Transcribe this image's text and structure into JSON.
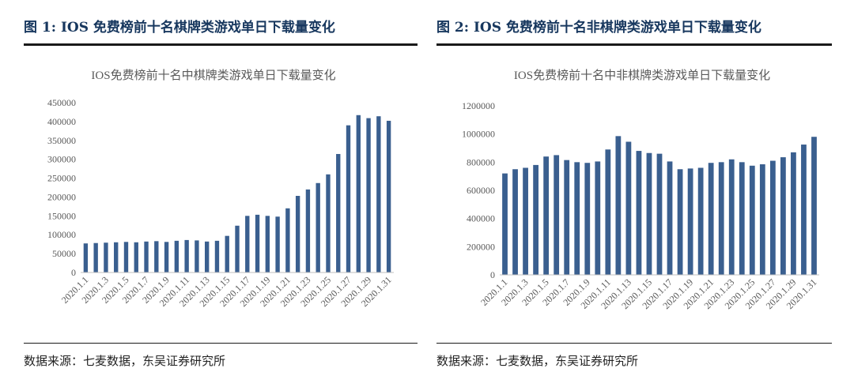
{
  "figures": [
    {
      "heading": "图 1:  IOS 免费榜前十名棋牌类游戏单日下载量变化",
      "source": "数据来源：七麦数据，东吴证券研究所"
    },
    {
      "heading": "图 2:  IOS 免费榜前十名非棋牌类游戏单日下载量变化",
      "source": "数据来源：七麦数据，东吴证券研究所"
    }
  ],
  "chart_data": [
    {
      "type": "bar",
      "title": "IOS免费榜前十名中棋牌类游戏单日下载量变化",
      "categories": [
        "2020.1.1",
        "2020.1.2",
        "2020.1.3",
        "2020.1.4",
        "2020.1.5",
        "2020.1.6",
        "2020.1.7",
        "2020.1.8",
        "2020.1.9",
        "2020.1.10",
        "2020.1.11",
        "2020.1.12",
        "2020.1.13",
        "2020.1.14",
        "2020.1.15",
        "2020.1.16",
        "2020.1.17",
        "2020.1.18",
        "2020.1.19",
        "2020.1.20",
        "2020.1.21",
        "2020.1.22",
        "2020.1.23",
        "2020.1.24",
        "2020.1.25",
        "2020.1.26",
        "2020.1.27",
        "2020.1.28",
        "2020.1.29",
        "2020.1.30",
        "2020.1.31"
      ],
      "tick_labels": [
        "2020.1.1",
        "2020.1.3",
        "2020.1.5",
        "2020.1.7",
        "2020.1.9",
        "2020.1.11",
        "2020.1.13",
        "2020.1.15",
        "2020.1.17",
        "2020.1.19",
        "2020.1.21",
        "2020.1.23",
        "2020.1.25",
        "2020.1.27",
        "2020.1.29",
        "2020.1.31"
      ],
      "values": [
        77000,
        78000,
        79000,
        80000,
        81000,
        80000,
        82000,
        83000,
        81000,
        84000,
        86000,
        85000,
        82000,
        84000,
        97000,
        124000,
        150000,
        153000,
        150000,
        148000,
        170000,
        203000,
        220000,
        237000,
        260000,
        314000,
        390000,
        417000,
        409000,
        414000,
        402000
      ],
      "ylim": [
        0,
        450000
      ],
      "yticks": [
        "0",
        "50000",
        "100000",
        "150000",
        "200000",
        "250000",
        "300000",
        "350000",
        "400000",
        "450000"
      ],
      "ytick_values": [
        0,
        50000,
        100000,
        150000,
        200000,
        250000,
        300000,
        350000,
        400000,
        450000
      ],
      "color": "#3a5f8f",
      "grid": false
    },
    {
      "type": "bar",
      "title": "IOS免费榜前十名中非棋牌类游戏单日下载量变化",
      "categories": [
        "2020.1.1",
        "2020.1.2",
        "2020.1.3",
        "2020.1.4",
        "2020.1.5",
        "2020.1.6",
        "2020.1.7",
        "2020.1.8",
        "2020.1.9",
        "2020.1.10",
        "2020.1.11",
        "2020.1.12",
        "2020.1.13",
        "2020.1.14",
        "2020.1.15",
        "2020.1.16",
        "2020.1.17",
        "2020.1.18",
        "2020.1.19",
        "2020.1.20",
        "2020.1.21",
        "2020.1.22",
        "2020.1.23",
        "2020.1.24",
        "2020.1.25",
        "2020.1.26",
        "2020.1.27",
        "2020.1.28",
        "2020.1.29",
        "2020.1.30",
        "2020.1.31"
      ],
      "tick_labels": [
        "2020.1.1",
        "2020.1.3",
        "2020.1.5",
        "2020.1.7",
        "2020.1.9",
        "2020.1.11",
        "2020.1.13",
        "2020.1.15",
        "2020.1.17",
        "2020.1.19",
        "2020.1.21",
        "2020.1.23",
        "2020.1.25",
        "2020.1.27",
        "2020.1.29",
        "2020.1.31"
      ],
      "values": [
        720000,
        750000,
        760000,
        780000,
        840000,
        850000,
        815000,
        800000,
        795000,
        805000,
        890000,
        985000,
        945000,
        880000,
        865000,
        860000,
        805000,
        750000,
        755000,
        760000,
        795000,
        800000,
        820000,
        800000,
        775000,
        785000,
        810000,
        835000,
        870000,
        925000,
        980000
      ],
      "ylim": [
        0,
        1200000
      ],
      "yticks": [
        "0",
        "200000",
        "400000",
        "600000",
        "800000",
        "1000000",
        "1200000"
      ],
      "ytick_values": [
        0,
        200000,
        400000,
        600000,
        800000,
        1000000,
        1200000
      ],
      "color": "#3a5f8f",
      "grid": false
    }
  ]
}
